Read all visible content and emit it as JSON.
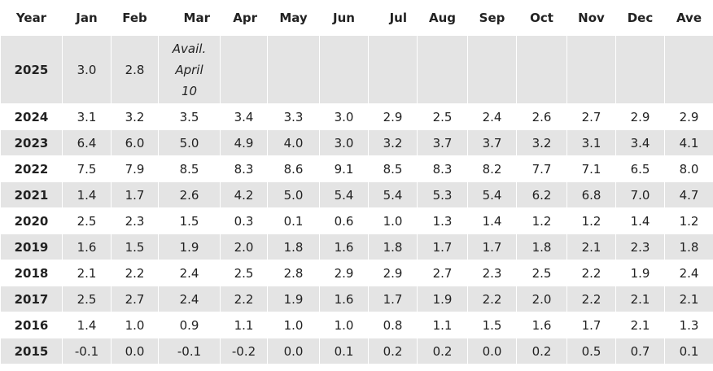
{
  "headers": [
    "Year",
    "Jan",
    "Feb",
    "Mar",
    "Apr",
    "May",
    "Jun",
    "Jul",
    "Aug",
    "Sep",
    "Oct",
    "Nov",
    "Dec",
    "Ave"
  ],
  "rows": [
    {
      "year": "2025",
      "cells": [
        "3.0",
        "2.8",
        "",
        "",
        "",
        "",
        "",
        "",
        "",
        "",
        "",
        "",
        ""
      ],
      "note": [
        "Avail.",
        "April",
        "10"
      ]
    },
    {
      "year": "2024",
      "cells": [
        "3.1",
        "3.2",
        "3.5",
        "3.4",
        "3.3",
        "3.0",
        "2.9",
        "2.5",
        "2.4",
        "2.6",
        "2.7",
        "2.9",
        "2.9"
      ]
    },
    {
      "year": "2023",
      "cells": [
        "6.4",
        "6.0",
        "5.0",
        "4.9",
        "4.0",
        "3.0",
        "3.2",
        "3.7",
        "3.7",
        "3.2",
        "3.1",
        "3.4",
        "4.1"
      ]
    },
    {
      "year": "2022",
      "cells": [
        "7.5",
        "7.9",
        "8.5",
        "8.3",
        "8.6",
        "9.1",
        "8.5",
        "8.3",
        "8.2",
        "7.7",
        "7.1",
        "6.5",
        "8.0"
      ]
    },
    {
      "year": "2021",
      "cells": [
        "1.4",
        "1.7",
        "2.6",
        "4.2",
        "5.0",
        "5.4",
        "5.4",
        "5.3",
        "5.4",
        "6.2",
        "6.8",
        "7.0",
        "4.7"
      ]
    },
    {
      "year": "2020",
      "cells": [
        "2.5",
        "2.3",
        "1.5",
        "0.3",
        "0.1",
        "0.6",
        "1.0",
        "1.3",
        "1.4",
        "1.2",
        "1.2",
        "1.4",
        "1.2"
      ]
    },
    {
      "year": "2019",
      "cells": [
        "1.6",
        "1.5",
        "1.9",
        "2.0",
        "1.8",
        "1.6",
        "1.8",
        "1.7",
        "1.7",
        "1.8",
        "2.1",
        "2.3",
        "1.8"
      ]
    },
    {
      "year": "2018",
      "cells": [
        "2.1",
        "2.2",
        "2.4",
        "2.5",
        "2.8",
        "2.9",
        "2.9",
        "2.7",
        "2.3",
        "2.5",
        "2.2",
        "1.9",
        "2.4"
      ]
    },
    {
      "year": "2017",
      "cells": [
        "2.5",
        "2.7",
        "2.4",
        "2.2",
        "1.9",
        "1.6",
        "1.7",
        "1.9",
        "2.2",
        "2.0",
        "2.2",
        "2.1",
        "2.1"
      ]
    },
    {
      "year": "2016",
      "cells": [
        "1.4",
        "1.0",
        "0.9",
        "1.1",
        "1.0",
        "1.0",
        "0.8",
        "1.1",
        "1.5",
        "1.6",
        "1.7",
        "2.1",
        "1.3"
      ]
    },
    {
      "year": "2015",
      "cells": [
        "-0.1",
        "0.0",
        "-0.1",
        "-0.2",
        "0.0",
        "0.1",
        "0.2",
        "0.2",
        "0.0",
        "0.2",
        "0.5",
        "0.7",
        "0.1"
      ]
    }
  ]
}
